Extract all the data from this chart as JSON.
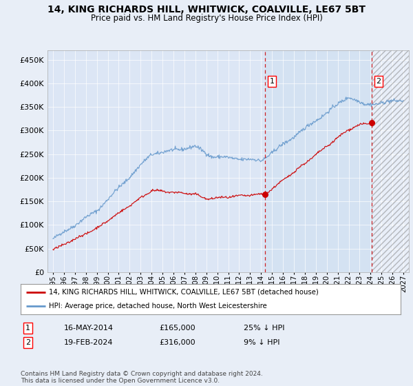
{
  "title": "14, KING RICHARDS HILL, WHITWICK, COALVILLE, LE67 5BT",
  "subtitle": "Price paid vs. HM Land Registry's House Price Index (HPI)",
  "legend_line1": "14, KING RICHARDS HILL, WHITWICK, COALVILLE, LE67 5BT (detached house)",
  "legend_line2": "HPI: Average price, detached house, North West Leicestershire",
  "annotation1_date": "16-MAY-2014",
  "annotation1_price": "£165,000",
  "annotation1_hpi": "25% ↓ HPI",
  "annotation2_date": "19-FEB-2024",
  "annotation2_price": "£316,000",
  "annotation2_hpi": "9% ↓ HPI",
  "footnote": "Contains HM Land Registry data © Crown copyright and database right 2024.\nThis data is licensed under the Open Government Licence v3.0.",
  "ylim": [
    0,
    470000
  ],
  "yticks": [
    0,
    50000,
    100000,
    150000,
    200000,
    250000,
    300000,
    350000,
    400000,
    450000
  ],
  "xlim_start": 1994.5,
  "xlim_end": 2027.5,
  "sale1_x": 2014.37,
  "sale1_y": 165000,
  "sale2_x": 2024.12,
  "sale2_y": 316000,
  "background_color": "#e8eef7",
  "plot_bg_color": "#dce6f5",
  "plot_bg_between_color": "#ccd9ee",
  "red_color": "#cc0000",
  "blue_color": "#6699cc",
  "vline_color": "#cc0000"
}
